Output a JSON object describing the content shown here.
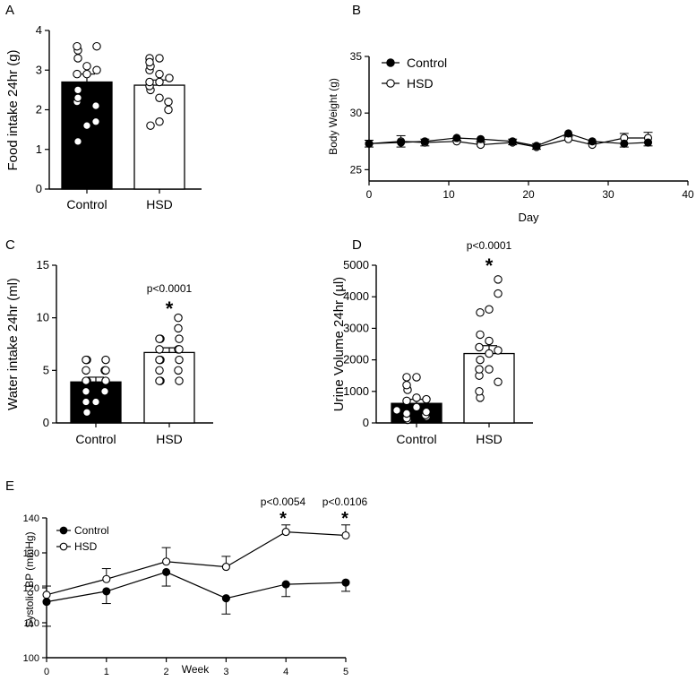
{
  "colors": {
    "control": "#000000",
    "hsd": "#ffffff",
    "ink": "#000000"
  },
  "panels": {
    "A": {
      "letter": "A"
    },
    "B": {
      "letter": "B"
    },
    "C": {
      "letter": "C"
    },
    "D": {
      "letter": "D"
    },
    "E": {
      "letter": "E"
    }
  },
  "chart_data": [
    {
      "id": "A",
      "type": "bar",
      "ylabel": "Food intake 24hr (g)",
      "ylim": [
        0,
        4
      ],
      "yticks": [
        0,
        1,
        2,
        3,
        4
      ],
      "categories": [
        "Control",
        "HSD"
      ],
      "means": [
        2.7,
        2.62
      ],
      "sem": [
        0.2,
        0.13
      ],
      "points": [
        [
          1.2,
          1.6,
          1.7,
          2.1,
          2.2,
          2.3,
          2.5,
          2.9,
          2.9,
          3.0,
          3.1,
          3.3,
          3.5,
          3.6,
          3.6
        ],
        [
          1.6,
          1.7,
          2.0,
          2.2,
          2.3,
          2.5,
          2.6,
          2.7,
          2.7,
          2.8,
          2.9,
          3.0,
          3.1,
          3.3,
          3.3,
          3.2
        ]
      ]
    },
    {
      "id": "B",
      "type": "line",
      "xlabel": "Day",
      "ylabel": "Body Weight (g)",
      "xlim": [
        0,
        40
      ],
      "xticks": [
        0,
        10,
        20,
        30,
        40
      ],
      "ylim": [
        24,
        35
      ],
      "yticks": [
        25,
        30,
        35
      ],
      "legend": "top-left",
      "series": [
        {
          "name": "Control",
          "x": [
            0,
            4,
            7,
            11,
            14,
            18,
            21,
            25,
            28,
            32,
            35
          ],
          "y": [
            27.3,
            27.4,
            27.5,
            27.8,
            27.7,
            27.5,
            27.1,
            28.2,
            27.5,
            27.3,
            27.4
          ],
          "err": [
            0.3,
            0.4,
            0.4,
            0.2,
            0.2,
            0.3,
            0.3,
            0.2,
            0.2,
            0.3,
            0.3
          ]
        },
        {
          "name": "HSD",
          "x": [
            0,
            4,
            7,
            11,
            14,
            18,
            21,
            25,
            28,
            32,
            35
          ],
          "y": [
            27.3,
            27.5,
            27.4,
            27.5,
            27.2,
            27.4,
            27.0,
            27.7,
            27.2,
            27.8,
            27.8
          ],
          "err": [
            0.3,
            0.5,
            0.3,
            0.3,
            0.2,
            0.3,
            0.3,
            0.2,
            0.2,
            0.4,
            0.5
          ]
        }
      ]
    },
    {
      "id": "C",
      "type": "bar",
      "ylabel": "Water intake 24hr (ml)",
      "ylim": [
        0,
        15
      ],
      "yticks": [
        0,
        5,
        10,
        15
      ],
      "categories": [
        "Control",
        "HSD"
      ],
      "means": [
        3.9,
        6.7
      ],
      "sem": [
        0.45,
        0.45
      ],
      "annotation": {
        "text": "p<0.0001",
        "star": "*"
      },
      "points": [
        [
          1.0,
          2.0,
          2.0,
          3.0,
          3.0,
          4.0,
          4.0,
          4.0,
          5.0,
          5.0,
          5.0,
          6.0,
          6.0,
          6.0
        ],
        [
          4.0,
          4.0,
          4.0,
          5.0,
          5.0,
          6.0,
          6.0,
          6.0,
          7.0,
          7.0,
          7.0,
          8.0,
          8.0,
          8.0,
          9.0,
          10.0
        ]
      ]
    },
    {
      "id": "D",
      "type": "bar",
      "ylabel": "Urine Volume 24hr (µl)",
      "ylim": [
        0,
        5000
      ],
      "yticks": [
        0,
        1000,
        2000,
        3000,
        4000,
        5000
      ],
      "categories": [
        "Control",
        "HSD"
      ],
      "means": [
        620,
        2200
      ],
      "sem": [
        130,
        250
      ],
      "annotation": {
        "text": "p<0.0001",
        "star": "*"
      },
      "points": [
        [
          100,
          150,
          200,
          250,
          300,
          350,
          400,
          500,
          700,
          750,
          800,
          1050,
          1200,
          1450,
          1450
        ],
        [
          800,
          1000,
          1300,
          1500,
          1700,
          1700,
          2000,
          2200,
          2300,
          2400,
          2600,
          2800,
          3500,
          3600,
          4100,
          4550
        ]
      ]
    },
    {
      "id": "E",
      "type": "line",
      "xlabel": "Week",
      "ylabel": "Systolic BP (mmHg)",
      "xlim": [
        0,
        5
      ],
      "xticks": [
        0,
        1,
        2,
        3,
        4,
        5
      ],
      "ylim": [
        100,
        140
      ],
      "yticks": [
        100,
        110,
        120,
        130,
        140
      ],
      "legend": "top-left",
      "series": [
        {
          "name": "Control",
          "x": [
            0,
            1,
            2,
            3,
            4,
            5
          ],
          "y": [
            116,
            119,
            124.5,
            117,
            121,
            121.5
          ],
          "err": [
            7,
            3.5,
            4,
            4.5,
            3.5,
            2.5
          ]
        },
        {
          "name": "HSD",
          "x": [
            0,
            1,
            2,
            3,
            4,
            5
          ],
          "y": [
            118,
            122.5,
            127.5,
            126,
            136,
            135
          ],
          "err": [
            2.5,
            3,
            4,
            3,
            2,
            3
          ]
        }
      ],
      "annotations": [
        {
          "x": 4,
          "text": "p<0.0054",
          "star": "*"
        },
        {
          "x": 5,
          "text": "p<0.0106",
          "star": "*"
        }
      ]
    }
  ]
}
